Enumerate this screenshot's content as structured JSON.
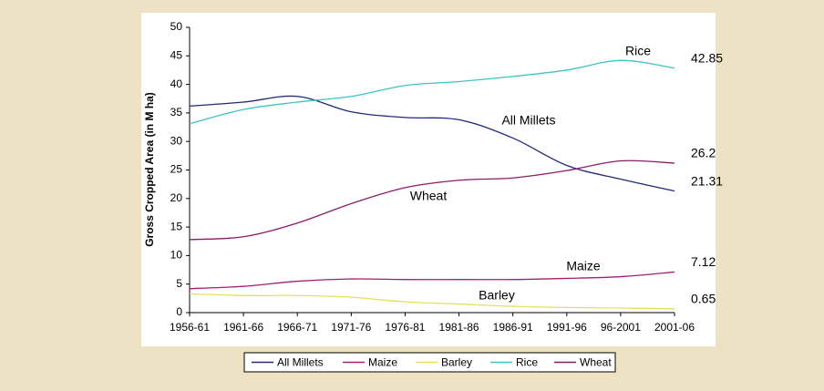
{
  "chart_data": {
    "type": "line",
    "ylabel": "Gross Cropped Area (in M ha)",
    "categories": [
      "1956-61",
      "1961-66",
      "1966-71",
      "1971-76",
      "1976-81",
      "1981-86",
      "1986-91",
      "1991-96",
      "96-2001",
      "2001-06"
    ],
    "series": [
      {
        "name": "All Millets",
        "color": "#1f2a7a",
        "values": [
          36.2,
          36.9,
          37.9,
          35.2,
          34.2,
          33.8,
          30.6,
          25.8,
          23.4,
          21.31
        ]
      },
      {
        "name": "Maize",
        "color": "#a0207a",
        "values": [
          4.2,
          4.6,
          5.5,
          5.9,
          5.8,
          5.8,
          5.8,
          6,
          6.3,
          7.12
        ]
      },
      {
        "name": "Barley",
        "color": "#e6df5c",
        "values": [
          3.3,
          3,
          3,
          2.7,
          1.9,
          1.5,
          1.1,
          0.9,
          0.8,
          0.65
        ]
      },
      {
        "name": "Rice",
        "color": "#3fc3c3",
        "values": [
          33.1,
          35.6,
          36.9,
          37.9,
          39.8,
          40.5,
          41.4,
          42.5,
          44.2,
          42.85
        ]
      },
      {
        "name": "Wheat",
        "color": "#8b1a6b",
        "values": [
          12.8,
          13.3,
          15.7,
          19.1,
          21.9,
          23.2,
          23.6,
          24.9,
          26.6,
          26.2
        ]
      }
    ],
    "annotations": [
      "Rice",
      "All Millets",
      "Wheat",
      "Maize",
      "Barley"
    ],
    "ylim": [
      0,
      50
    ],
    "yticks": [
      0,
      5,
      10,
      15,
      20,
      25,
      30,
      35,
      40,
      45,
      50
    ],
    "legend": "bottom"
  }
}
